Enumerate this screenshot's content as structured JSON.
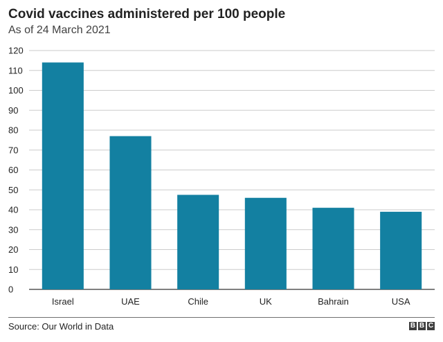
{
  "chart_data": {
    "type": "bar",
    "title": "Covid vaccines administered per 100 people",
    "subtitle": "As of 24 March 2021",
    "categories": [
      "Israel",
      "UAE",
      "Chile",
      "UK",
      "Bahrain",
      "USA"
    ],
    "values": [
      114,
      77,
      47.5,
      46,
      41,
      39
    ],
    "xlabel": "",
    "ylabel": "",
    "ylim": [
      0,
      120
    ],
    "yticks": [
      0,
      10,
      20,
      30,
      40,
      50,
      60,
      70,
      80,
      90,
      100,
      110,
      120
    ],
    "grid": true,
    "bar_color": "#1380a1",
    "grid_color": "#cbcbcb"
  },
  "footer": {
    "source": "Source: Our World in Data",
    "logo": [
      "B",
      "B",
      "C"
    ]
  }
}
